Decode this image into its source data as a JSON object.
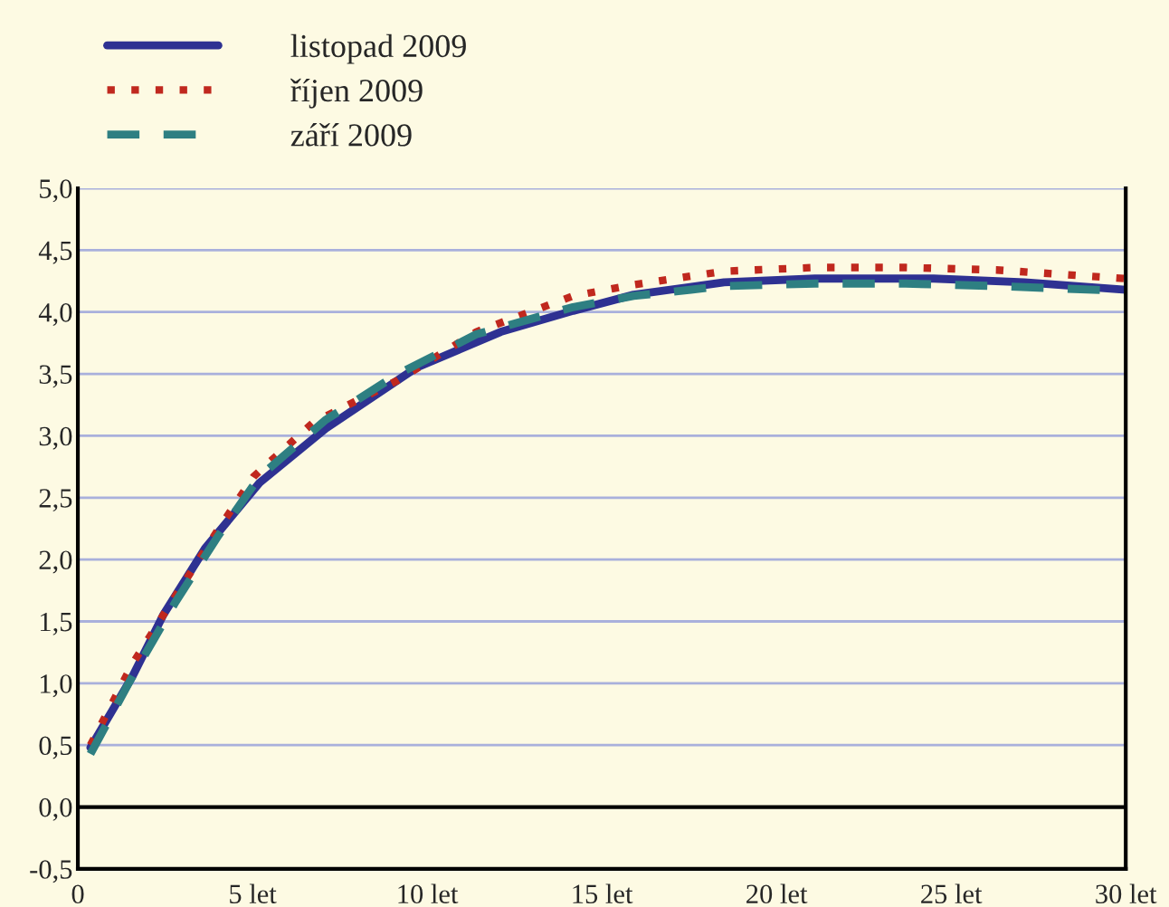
{
  "chart_data": {
    "type": "line",
    "series": [
      {
        "name": "listopad 2009",
        "color": "#2e3192",
        "line_style": "solid",
        "x": [
          0.36,
          1.57,
          2.44,
          3.64,
          5.2,
          7.1,
          9.69,
          12.11,
          14.18,
          15.91,
          18.5,
          21.1,
          24.5,
          27.1,
          30.0
        ],
        "values": [
          0.48,
          1.06,
          1.55,
          2.09,
          2.62,
          3.06,
          3.55,
          3.84,
          4.01,
          4.14,
          4.24,
          4.27,
          4.27,
          4.24,
          4.18
        ]
      },
      {
        "name": "říjen 2009",
        "color": "#c0281e",
        "line_style": "dotted",
        "x": [
          0.36,
          1.57,
          2.78,
          3.99,
          5.03,
          6.75,
          9.17,
          11.41,
          14.18,
          15.91,
          18.5,
          21.1,
          23.7,
          26.3,
          30.0
        ],
        "values": [
          0.5,
          1.16,
          1.7,
          2.23,
          2.67,
          3.11,
          3.45,
          3.84,
          4.13,
          4.22,
          4.33,
          4.36,
          4.36,
          4.34,
          4.27
        ]
      },
      {
        "name": "září 2009",
        "color": "#2e7f82",
        "line_style": "dashed",
        "x": [
          0.36,
          1.57,
          2.78,
          3.99,
          5.2,
          7.1,
          9.17,
          11.41,
          14.18,
          15.91,
          18.5,
          21.1,
          23.7,
          26.3,
          30.0
        ],
        "values": [
          0.43,
          1.06,
          1.65,
          2.18,
          2.67,
          3.13,
          3.5,
          3.82,
          4.04,
          4.13,
          4.21,
          4.23,
          4.23,
          4.21,
          4.17
        ]
      }
    ],
    "xlim": [
      0,
      30
    ],
    "xticks": [
      0,
      {
        "value": 5,
        "label": "5 let"
      },
      {
        "value": 10,
        "label": "10 let"
      },
      {
        "value": 15,
        "label": "15 let"
      },
      {
        "value": 20,
        "label": "20 let"
      },
      {
        "value": 25,
        "label": "25 let"
      },
      {
        "value": 30,
        "label": "30 let"
      }
    ],
    "ylim": [
      -0.5,
      5.0
    ],
    "yticks": [
      {
        "value": -0.5,
        "label": "-0,5"
      },
      {
        "value": 0,
        "label": "0,0"
      },
      {
        "value": 0.5,
        "label": "0,5"
      },
      {
        "value": 1.0,
        "label": "1,0"
      },
      {
        "value": 1.5,
        "label": "1,5"
      },
      {
        "value": 2.0,
        "label": "2,0"
      },
      {
        "value": 2.5,
        "label": "2,5"
      },
      {
        "value": 3.0,
        "label": "3,0"
      },
      {
        "value": 3.5,
        "label": "3,5"
      },
      {
        "value": 4.0,
        "label": "4,0"
      },
      {
        "value": 4.5,
        "label": "4,5"
      },
      {
        "value": 5.0,
        "label": "5,0"
      }
    ],
    "ref_lines": [
      {
        "axis": "y",
        "value": 0,
        "color": "#000000",
        "line_style": "solid"
      }
    ],
    "grid": "y",
    "legend": "top left",
    "marker": "none"
  }
}
